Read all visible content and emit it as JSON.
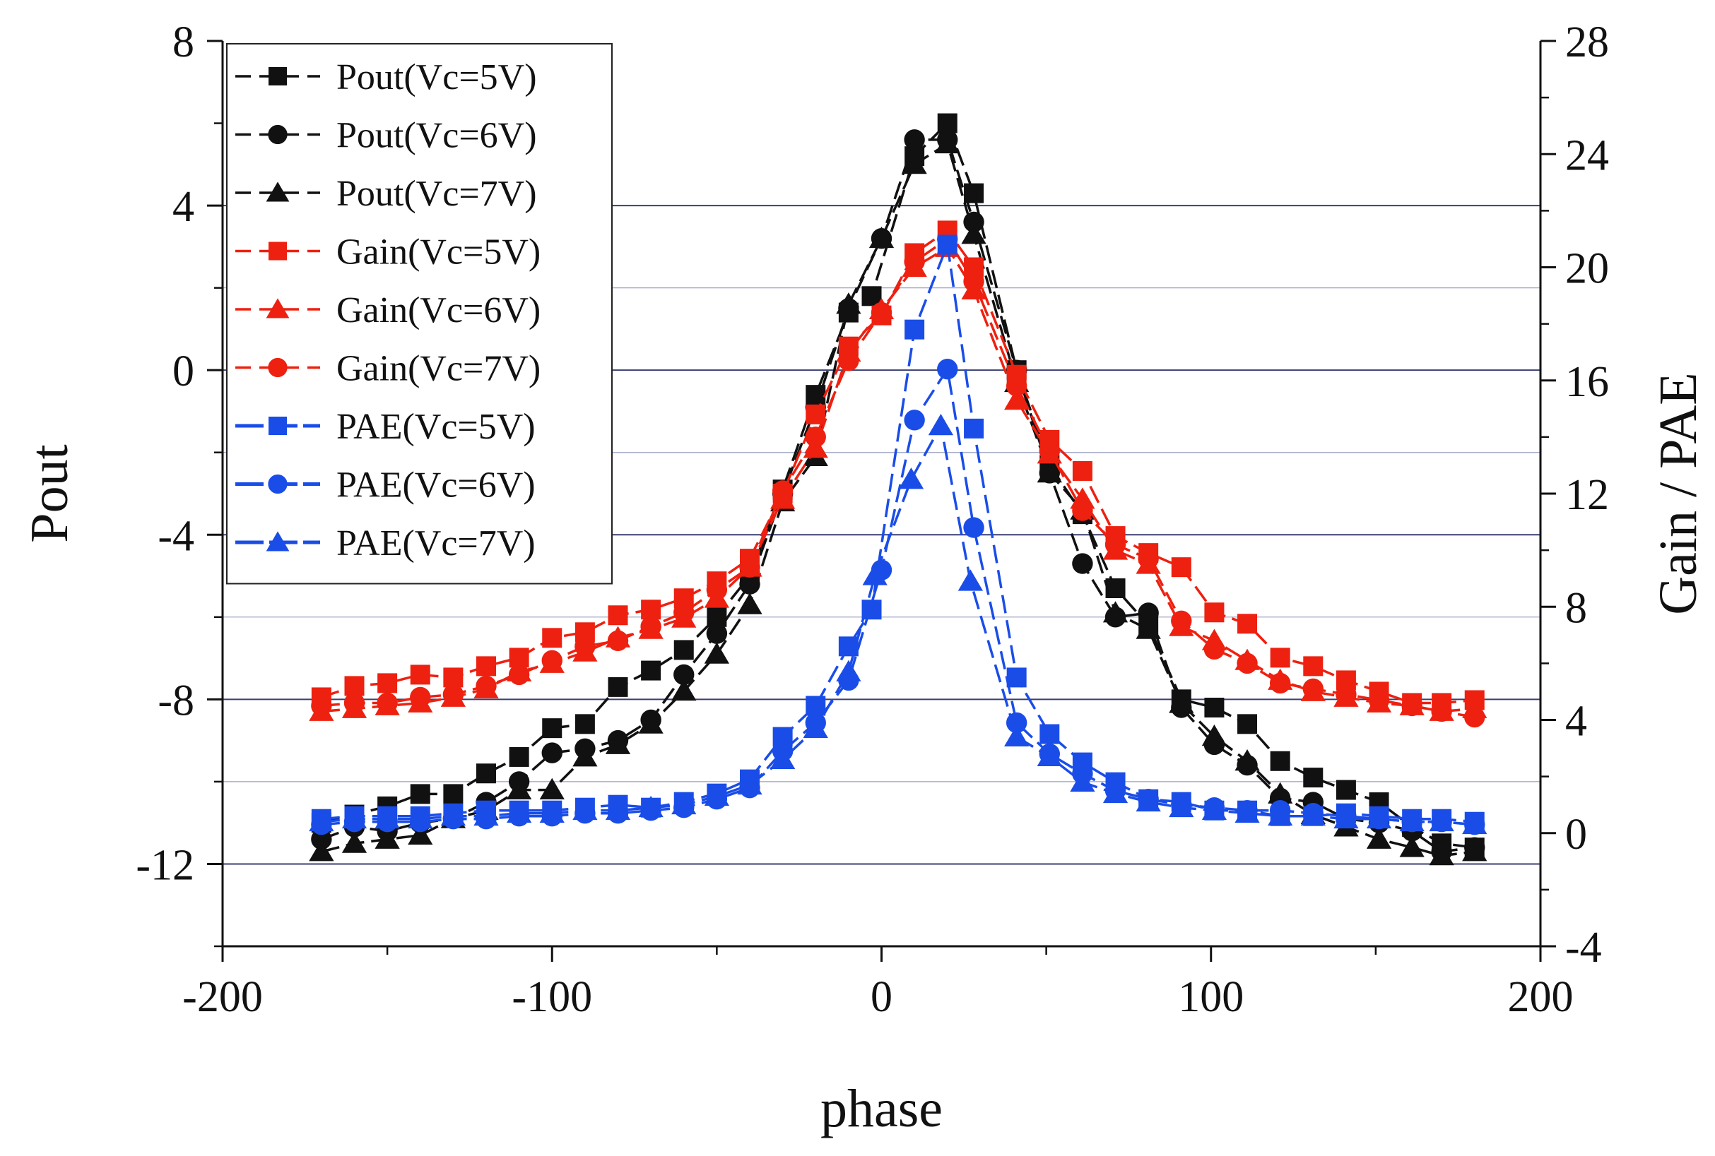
{
  "chart_data": {
    "type": "line",
    "xlabel": "phase",
    "ylabel_left": "Pout",
    "ylabel_right": "Gain / PAE",
    "xlim": [
      -200,
      200
    ],
    "ylim_left": [
      -14,
      8
    ],
    "ylim_right": [
      -4,
      28
    ],
    "x_ticks": [
      -200,
      -100,
      0,
      100,
      200
    ],
    "x_tick_labels": [
      "-200",
      "-100",
      "0",
      "100",
      "200"
    ],
    "y_left_ticks": [
      -12,
      -8,
      -4,
      0,
      4,
      8
    ],
    "y_left_tick_labels": [
      "-12",
      "-8",
      "-4",
      "0",
      "4",
      "8"
    ],
    "y_right_ticks": [
      -4,
      0,
      4,
      8,
      12,
      16,
      20,
      24,
      28
    ],
    "y_right_tick_labels": [
      "-4",
      "0",
      "4",
      "8",
      "12",
      "16",
      "20",
      "24",
      "28"
    ],
    "gridlines_left": [
      -12,
      -10,
      -8,
      -6,
      -4,
      -2,
      0,
      2,
      4
    ],
    "legend_position": "top-left",
    "x": [
      -170,
      -160,
      -150,
      -140,
      -130,
      -120,
      -110,
      -100,
      -90,
      -80,
      -70,
      -60,
      -50,
      -40,
      -30,
      -20,
      -10,
      0,
      10,
      20,
      30,
      40,
      50,
      60,
      70,
      80,
      90,
      100,
      110,
      120,
      130,
      140,
      150,
      160,
      170,
      180
    ],
    "series": [
      {
        "name": "Pout(Vc=5V)",
        "axis": "left",
        "color": "#111111",
        "marker": "square",
        "x": [
          -170,
          -160,
          -150,
          -140,
          -130,
          -120,
          -110,
          -100,
          -90,
          -80,
          -70,
          -60,
          -50,
          -40,
          -30,
          -20,
          -10,
          -3,
          10,
          20,
          28,
          41,
          51,
          61,
          71,
          81,
          91,
          101,
          111,
          121,
          131,
          141,
          151,
          161,
          170,
          180
        ],
        "values": [
          -11.0,
          -10.8,
          -10.6,
          -10.3,
          -10.3,
          -9.8,
          -9.4,
          -8.7,
          -8.6,
          -7.7,
          -7.3,
          -6.8,
          -6.0,
          -5.0,
          -2.9,
          -0.6,
          1.4,
          1.8,
          5.2,
          6.0,
          4.3,
          0.0,
          -2.3,
          -3.5,
          -5.3,
          -6.2,
          -8.0,
          -8.2,
          -8.6,
          -9.5,
          -9.9,
          -10.2,
          -10.5,
          -11.1,
          -11.5,
          -11.6
        ]
      },
      {
        "name": "Pout(Vc=6V)",
        "axis": "left",
        "color": "#111111",
        "marker": "circle",
        "x": [
          -170,
          -160,
          -150,
          -140,
          -130,
          -120,
          -110,
          -100,
          -90,
          -80,
          -70,
          -60,
          -50,
          -40,
          -30,
          -20,
          -10,
          0,
          10,
          20,
          28,
          41,
          51,
          61,
          71,
          81,
          91,
          101,
          111,
          121,
          131,
          141,
          151,
          161,
          170,
          180
        ],
        "values": [
          -11.4,
          -11.1,
          -11.2,
          -11.0,
          -10.9,
          -10.5,
          -10.0,
          -9.3,
          -9.2,
          -9.0,
          -8.5,
          -7.4,
          -6.4,
          -5.2,
          -3.0,
          -0.9,
          1.5,
          3.2,
          5.6,
          5.6,
          3.6,
          0.0,
          -2.5,
          -4.7,
          -6.0,
          -5.9,
          -8.2,
          -9.1,
          -9.6,
          -10.4,
          -10.5,
          -10.9,
          -11.0,
          -11.2,
          -11.7,
          -11.6
        ]
      },
      {
        "name": "Pout(Vc=7V)",
        "axis": "left",
        "color": "#111111",
        "marker": "triangle",
        "x": [
          -170,
          -160,
          -150,
          -140,
          -130,
          -120,
          -110,
          -100,
          -90,
          -80,
          -70,
          -60,
          -50,
          -40,
          -30,
          -20,
          -10,
          0,
          10,
          20,
          28,
          41,
          51,
          61,
          71,
          81,
          91,
          101,
          111,
          121,
          131,
          141,
          151,
          161,
          170,
          180
        ],
        "values": [
          -11.7,
          -11.5,
          -11.4,
          -11.3,
          -10.9,
          -10.7,
          -10.2,
          -10.2,
          -9.4,
          -9.1,
          -8.6,
          -7.8,
          -6.9,
          -5.7,
          -3.2,
          -2.1,
          1.6,
          3.2,
          5.0,
          5.5,
          3.3,
          -0.3,
          -2.5,
          -3.4,
          -5.9,
          -6.3,
          -8.1,
          -8.9,
          -9.5,
          -10.3,
          -10.8,
          -11.1,
          -11.4,
          -11.6,
          -11.8,
          -11.7
        ]
      },
      {
        "name": "Gain(Vc=5V)",
        "axis": "right",
        "color": "#ee2010",
        "marker": "square",
        "x": [
          -170,
          -160,
          -150,
          -140,
          -130,
          -120,
          -110,
          -100,
          -90,
          -80,
          -70,
          -60,
          -50,
          -40,
          -30,
          -20,
          -10,
          0,
          10,
          20,
          28,
          41,
          51,
          61,
          71,
          81,
          91,
          101,
          111,
          121,
          131,
          141,
          151,
          161,
          170,
          180
        ],
        "values": [
          4.8,
          5.2,
          5.3,
          5.6,
          5.5,
          5.9,
          6.2,
          6.9,
          7.1,
          7.7,
          7.9,
          8.3,
          8.9,
          9.7,
          12.0,
          14.8,
          17.2,
          18.3,
          20.5,
          21.3,
          20.0,
          16.2,
          13.9,
          12.8,
          10.5,
          9.9,
          9.4,
          7.8,
          7.4,
          6.2,
          5.9,
          5.4,
          5.0,
          4.6,
          4.6,
          4.7
        ]
      },
      {
        "name": "Gain(Vc=6V)",
        "axis": "right",
        "color": "#ee2010",
        "marker": "triangle",
        "x": [
          -170,
          -160,
          -150,
          -140,
          -130,
          -120,
          -110,
          -100,
          -90,
          -80,
          -70,
          -60,
          -50,
          -40,
          -30,
          -20,
          -10,
          0,
          10,
          20,
          28,
          41,
          51,
          61,
          71,
          81,
          91,
          101,
          111,
          121,
          131,
          141,
          151,
          161,
          170,
          180
        ],
        "values": [
          4.3,
          4.4,
          4.5,
          4.6,
          4.8,
          5.1,
          5.7,
          6.0,
          6.4,
          6.9,
          7.2,
          7.6,
          8.3,
          9.4,
          11.8,
          13.6,
          17.0,
          18.5,
          20.0,
          20.7,
          19.2,
          15.3,
          13.4,
          11.8,
          10.0,
          9.5,
          7.3,
          6.8,
          6.1,
          5.4,
          5.0,
          4.8,
          4.6,
          4.5,
          4.3,
          4.4
        ]
      },
      {
        "name": "Gain(Vc=7V)",
        "axis": "right",
        "color": "#ee2010",
        "marker": "circle",
        "x": [
          -170,
          -160,
          -150,
          -140,
          -130,
          -120,
          -110,
          -100,
          -90,
          -80,
          -70,
          -60,
          -50,
          -40,
          -30,
          -20,
          -10,
          0,
          10,
          20,
          28,
          41,
          51,
          61,
          71,
          81,
          91,
          101,
          111,
          121,
          131,
          141,
          151,
          161,
          170,
          180
        ],
        "values": [
          4.5,
          4.6,
          4.6,
          4.8,
          4.9,
          5.2,
          5.6,
          6.1,
          6.6,
          6.8,
          7.3,
          7.8,
          8.6,
          9.4,
          12.1,
          14.0,
          16.7,
          18.4,
          20.2,
          21.0,
          19.5,
          15.8,
          13.5,
          11.4,
          10.2,
          9.7,
          7.5,
          6.5,
          6.0,
          5.3,
          5.1,
          4.9,
          4.7,
          4.5,
          4.3,
          4.1
        ]
      },
      {
        "name": "PAE(Vc=5V)",
        "axis": "right",
        "color": "#1a4de8",
        "marker": "square",
        "x": [
          -170,
          -160,
          -150,
          -140,
          -130,
          -120,
          -110,
          -100,
          -90,
          -80,
          -70,
          -60,
          -50,
          -40,
          -30,
          -20,
          -10,
          -3,
          10,
          20,
          28,
          41,
          51,
          61,
          71,
          81,
          91,
          101,
          111,
          121,
          131,
          141,
          151,
          161,
          170,
          180
        ],
        "values": [
          0.5,
          0.6,
          0.6,
          0.6,
          0.7,
          0.8,
          0.8,
          0.8,
          0.9,
          1.0,
          0.9,
          1.1,
          1.4,
          1.9,
          3.4,
          4.5,
          6.6,
          7.9,
          17.8,
          20.8,
          14.3,
          5.5,
          3.5,
          2.5,
          1.8,
          1.2,
          1.1,
          0.8,
          0.8,
          0.6,
          0.6,
          0.7,
          0.6,
          0.5,
          0.5,
          0.4
        ]
      },
      {
        "name": "PAE(Vc=6V)",
        "axis": "right",
        "color": "#1a4de8",
        "marker": "circle",
        "x": [
          -170,
          -160,
          -150,
          -140,
          -130,
          -120,
          -110,
          -100,
          -90,
          -80,
          -70,
          -60,
          -50,
          -40,
          -30,
          -20,
          -10,
          0,
          10,
          20,
          28,
          41,
          51,
          61,
          71,
          81,
          91,
          101,
          111,
          121,
          131,
          141,
          151,
          161,
          170,
          180
        ],
        "values": [
          0.3,
          0.4,
          0.4,
          0.4,
          0.5,
          0.5,
          0.6,
          0.6,
          0.7,
          0.7,
          0.8,
          0.9,
          1.2,
          1.6,
          2.9,
          3.9,
          5.4,
          9.3,
          14.6,
          16.4,
          10.8,
          3.9,
          2.8,
          2.1,
          1.5,
          1.2,
          1.0,
          0.9,
          0.8,
          0.8,
          0.7,
          0.6,
          0.5,
          0.4,
          0.4,
          0.3
        ]
      },
      {
        "name": "PAE(Vc=7V)",
        "axis": "right",
        "color": "#1a4de8",
        "marker": "triangle",
        "x": [
          -170,
          -160,
          -150,
          -140,
          -130,
          -120,
          -110,
          -100,
          -90,
          -80,
          -70,
          -60,
          -50,
          -40,
          -30,
          -20,
          -10,
          -2,
          9,
          18,
          27,
          41,
          51,
          61,
          71,
          81,
          91,
          101,
          111,
          121,
          131,
          141,
          151,
          161,
          170,
          180
        ],
        "values": [
          0.4,
          0.5,
          0.5,
          0.5,
          0.6,
          0.6,
          0.7,
          0.7,
          0.8,
          0.8,
          0.9,
          1.0,
          1.3,
          1.7,
          2.6,
          3.7,
          5.7,
          9.1,
          12.5,
          14.4,
          8.9,
          3.4,
          2.7,
          1.8,
          1.4,
          1.1,
          0.9,
          0.8,
          0.7,
          0.6,
          0.6,
          0.5,
          0.5,
          0.4,
          0.4,
          0.3
        ]
      }
    ]
  }
}
